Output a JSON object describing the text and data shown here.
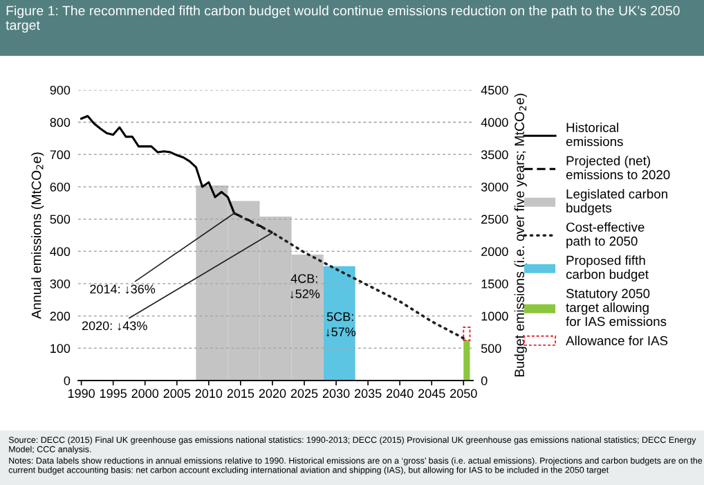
{
  "chart_data": {
    "type": "line",
    "title": "Figure 1: The recommended fifth carbon budget would continue emissions reduction on the path to the UK’s 2050 target",
    "ylabel": "Annual emissions (MtCO$_{2}$e)",
    "y2label": "Budget emissions (i.e. over five years; MtCO$_{2}$e)",
    "xlim": [
      1989.5,
      2051.5
    ],
    "xticks": [
      1990,
      1995,
      2000,
      2005,
      2010,
      2015,
      2020,
      2025,
      2030,
      2035,
      2040,
      2045,
      2050
    ],
    "ylim": [
      0,
      900
    ],
    "yticks": [
      0,
      100,
      200,
      300,
      400,
      500,
      600,
      700,
      800,
      900
    ],
    "y2lim": [
      0,
      4500
    ],
    "y2ticks": [
      0,
      500,
      1000,
      1500,
      2000,
      2500,
      3000,
      3500,
      4000,
      4500
    ],
    "grid": "y",
    "legend": "right",
    "series": [
      {
        "name": "Historical emissions",
        "line_style": "solid",
        "color": "#000000",
        "x": [
          1990,
          1991,
          1992,
          1993,
          1994,
          1995,
          1996,
          1997,
          1998,
          1999,
          2000,
          2001,
          2002,
          2003,
          2004,
          2005,
          2006,
          2007,
          2008,
          2009,
          2010,
          2011,
          2012,
          2013,
          2014
        ],
        "values": [
          811,
          819,
          796,
          780,
          766,
          761,
          784,
          755,
          755,
          725,
          725,
          725,
          707,
          710,
          707,
          698,
          691,
          679,
          661,
          600,
          614,
          568,
          584,
          568,
          518
        ]
      },
      {
        "name": "Projected (net) emissions to 2020",
        "line_style": "dashed",
        "color": "#000000",
        "x": [
          2014,
          2017,
          2020
        ],
        "values": [
          518,
          490,
          458
        ]
      },
      {
        "name": "Legislated carbon budgets",
        "type": "bar",
        "axis": "y2",
        "color": "#c3c4c3",
        "x": [
          2010.5,
          2015.5,
          2020.5,
          2025.5
        ],
        "values": [
          3020,
          2780,
          2540,
          1950
        ]
      },
      {
        "name": "Cost-effective path to 2050",
        "line_style": "dotted",
        "color": "#231f20",
        "x": [
          2014,
          2020,
          2025,
          2030,
          2035,
          2040,
          2045,
          2050
        ],
        "values": [
          518,
          458,
          397,
          345,
          295,
          245,
          183,
          131
        ]
      },
      {
        "name": "Proposed fifth carbon budget",
        "type": "bar",
        "axis": "y2",
        "color": "#5bc5e3",
        "x": [
          2030.5
        ],
        "values": [
          1770
        ]
      },
      {
        "name": "Statutory 2050 target allowing for IAS emissions",
        "type": "bar",
        "color": "#8cc63f",
        "x": [
          2050.5
        ],
        "values": [
          125
        ]
      },
      {
        "name": "Allowance for IAS",
        "type": "bar",
        "line_style": "dashed",
        "color": "#e8262b",
        "x": [
          2050.5
        ],
        "base": [
          125
        ],
        "values": [
          40
        ]
      }
    ],
    "annotations": [
      {
        "text": "2014: ↓36%",
        "x": 2014,
        "y": 518
      },
      {
        "text": "2020: ↓43%",
        "x": 2020,
        "y": 458
      },
      "4CB:\n↓52%",
      "5CB:\n↓57%",
      "Source: DECC (2015) Final UK greenhouse gas emissions national statistics: 1990-2013; DECC (2015) Provisional UK greenhouse gas emissions national statistics; DECC Energy Model; CCC analysis.",
      "Notes: Data labels show reductions in annual emissions relative to 1990. Historical emissions are on a ‘gross’ basis (i.e. actual emissions). Projections and carbon budgets are on the current budget accounting basis: net carbon account excluding international aviation and shipping (IAS), but allowing for IAS to be included in the 2050 target"
    ]
  }
}
